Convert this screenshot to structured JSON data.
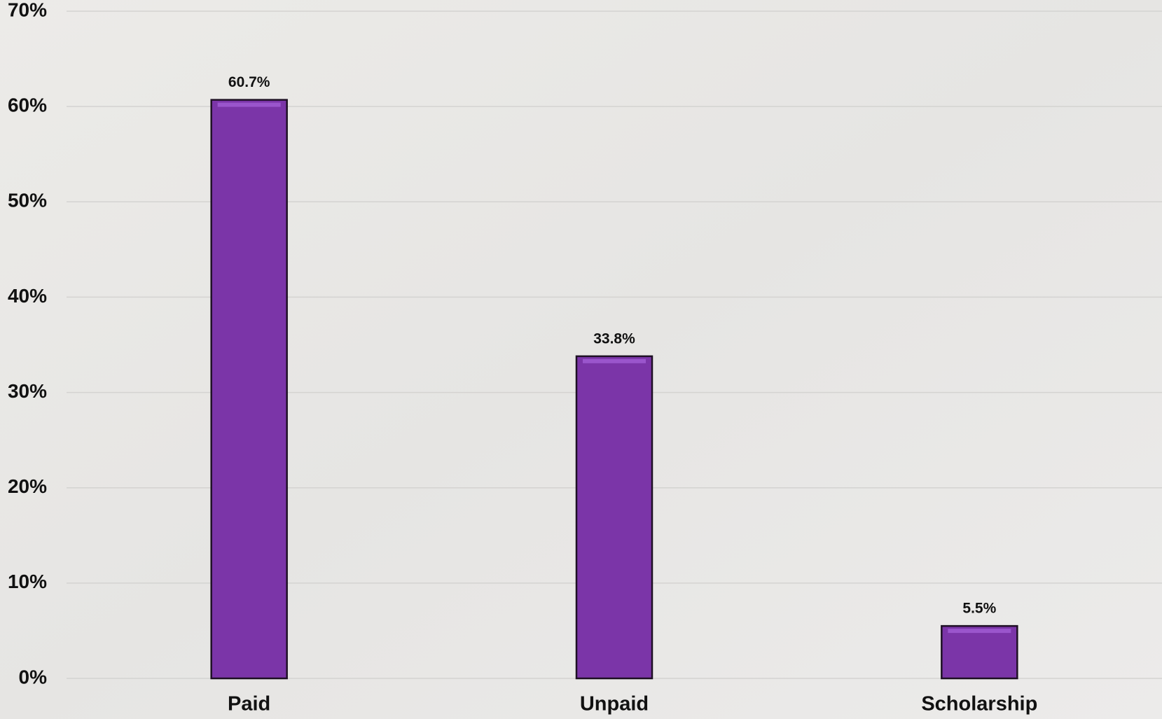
{
  "chart_data": {
    "type": "bar",
    "categories": [
      "Paid",
      "Unpaid",
      "Scholarship"
    ],
    "values": [
      60.7,
      33.8,
      5.5
    ],
    "value_labels": [
      "60.7%",
      "33.8%",
      "5.5%"
    ],
    "color": "#7b35a8",
    "ylim": [
      0,
      70
    ],
    "yticks": [
      {
        "value": 0,
        "label": "0%"
      },
      {
        "value": 10,
        "label": "10%"
      },
      {
        "value": 20,
        "label": "20%"
      },
      {
        "value": 30,
        "label": "30%"
      },
      {
        "value": 40,
        "label": "40%"
      },
      {
        "value": 50,
        "label": "50%"
      },
      {
        "value": 60,
        "label": "60%"
      },
      {
        "value": 70,
        "label": "70%"
      }
    ],
    "grid": true
  }
}
